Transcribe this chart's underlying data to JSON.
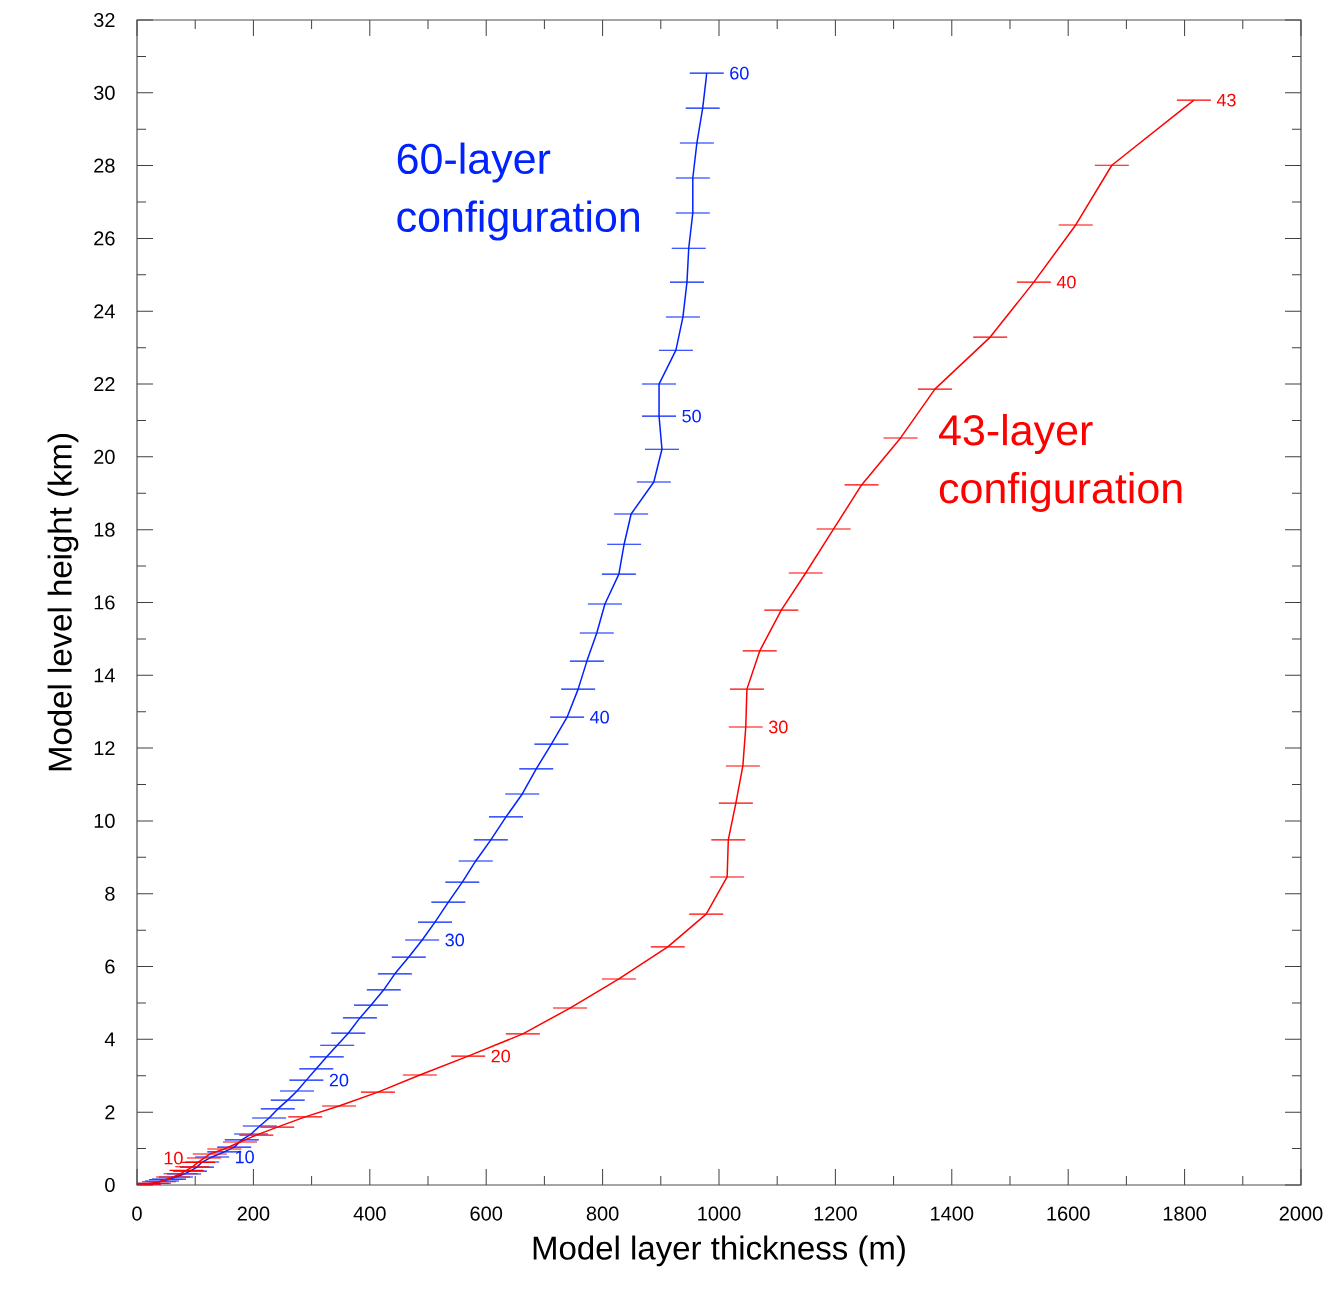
{
  "chart_data": {
    "type": "line",
    "xlabel": "Model layer thickness (m)",
    "ylabel": "Model level height (km)",
    "xlim": [
      0,
      2000
    ],
    "ylim": [
      0,
      32
    ],
    "xticks": [
      0,
      200,
      400,
      600,
      800,
      1000,
      1200,
      1400,
      1600,
      1800,
      2000
    ],
    "yticks": [
      0,
      2,
      4,
      6,
      8,
      10,
      12,
      14,
      16,
      18,
      20,
      22,
      24,
      26,
      28,
      30,
      32
    ],
    "grid": false,
    "line_style": "solid",
    "annotations": [
      {
        "text": "10",
        "x": 129,
        "y": 0.77
      },
      {
        "text": "20",
        "x": 291,
        "y": 2.88
      },
      {
        "text": "30",
        "x": 490,
        "y": 6.73
      },
      {
        "text": "40",
        "x": 739,
        "y": 12.85
      },
      {
        "text": "50",
        "x": 897,
        "y": 21.12
      },
      {
        "text": "60",
        "x": 979,
        "y": 30.54
      },
      {
        "text": "10",
        "x": 115,
        "y": 0.74
      },
      {
        "text": "20",
        "x": 569,
        "y": 3.54
      },
      {
        "text": "30",
        "x": 1046,
        "y": 12.58
      },
      {
        "text": "40",
        "x": 1541,
        "y": 24.8
      },
      {
        "text": "43",
        "x": 1816,
        "y": 29.8
      }
    ],
    "series": [
      {
        "name": "60-layer configuration",
        "color": "#0022ff",
        "x": [
          12,
          29,
          43,
          55,
          67,
          81,
          91,
          103,
          112,
          129,
          150,
          167,
          180,
          196,
          211,
          227,
          242,
          259,
          275,
          291,
          308,
          326,
          344,
          363,
          383,
          402,
          424,
          443,
          467,
          490,
          512,
          535,
          559,
          582,
          608,
          634,
          662,
          686,
          712,
          739,
          758,
          773,
          790,
          804,
          828,
          837,
          849,
          888,
          902,
          897,
          897,
          926,
          938,
          945,
          948,
          955,
          955,
          962,
          972,
          979
        ],
        "values": [
          0.03,
          0.05,
          0.11,
          0.16,
          0.22,
          0.3,
          0.38,
          0.49,
          0.63,
          0.77,
          0.91,
          1.04,
          1.24,
          1.4,
          1.62,
          1.84,
          2.09,
          2.33,
          2.58,
          2.88,
          3.19,
          3.52,
          3.84,
          4.17,
          4.59,
          4.94,
          5.36,
          5.8,
          6.26,
          6.73,
          7.22,
          7.77,
          8.32,
          8.9,
          9.48,
          10.11,
          10.74,
          11.43,
          12.11,
          12.85,
          13.62,
          14.39,
          15.16,
          15.96,
          16.78,
          17.6,
          18.43,
          19.31,
          20.21,
          21.12,
          22.0,
          22.93,
          23.84,
          24.8,
          25.73,
          26.7,
          27.66,
          28.62,
          29.58,
          30.54
        ]
      },
      {
        "name": "43-layer configuration",
        "color": "#ff0000",
        "x": [
          12,
          25,
          38,
          50,
          62,
          75,
          85,
          95,
          105,
          115,
          125,
          150,
          177,
          205,
          241,
          289,
          347,
          414,
          486,
          569,
          663,
          744,
          828,
          912,
          978,
          1014,
          1016,
          1029,
          1041,
          1046,
          1048,
          1070,
          1107,
          1149,
          1197,
          1245,
          1312,
          1371,
          1466,
          1541,
          1613,
          1675,
          1816
        ],
        "values": [
          0.02,
          0.05,
          0.09,
          0.15,
          0.22,
          0.31,
          0.4,
          0.5,
          0.62,
          0.74,
          0.85,
          0.99,
          1.18,
          1.37,
          1.59,
          1.87,
          2.17,
          2.55,
          3.02,
          3.54,
          4.15,
          4.86,
          5.66,
          6.54,
          7.44,
          8.46,
          9.48,
          10.49,
          11.51,
          12.58,
          13.62,
          14.67,
          15.79,
          16.81,
          18.02,
          19.23,
          20.52,
          21.86,
          23.29,
          24.8,
          26.37,
          28.01,
          29.8
        ]
      }
    ]
  }
}
